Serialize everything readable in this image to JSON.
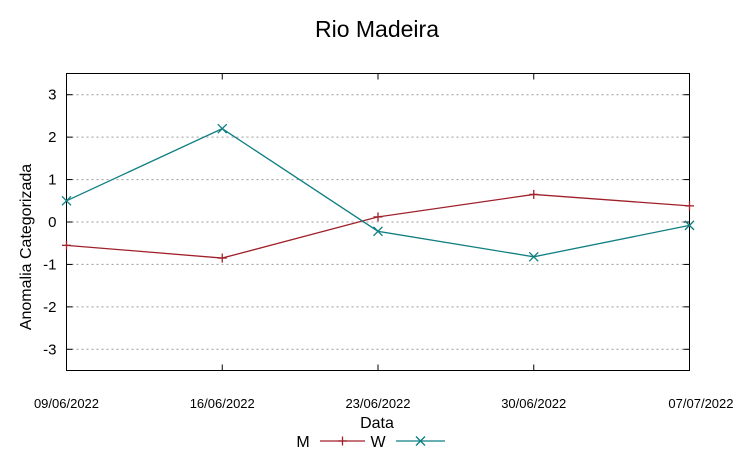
{
  "chart_data": {
    "type": "line",
    "title": "Rio Madeira",
    "xlabel": "Data",
    "ylabel": "Anomalia Categorizada",
    "categories": [
      "09/06/2022",
      "16/06/2022",
      "23/06/2022",
      "30/06/2022",
      "07/07/2022"
    ],
    "ylim": [
      -3.5,
      3.5
    ],
    "yticks": [
      3,
      2,
      1,
      0,
      -1,
      -2,
      -3
    ],
    "ytick_labels": [
      "3",
      "2",
      "1",
      "0",
      "-1",
      "-2",
      "-3"
    ],
    "grid": true,
    "series": [
      {
        "name": "M",
        "color": "#a0202a",
        "marker": "plus",
        "values": [
          -0.55,
          -0.85,
          0.12,
          0.65,
          0.38
        ]
      },
      {
        "name": "W",
        "color": "#0f7f82",
        "marker": "cross",
        "values": [
          0.5,
          2.2,
          -0.22,
          -0.82,
          -0.08
        ]
      }
    ]
  }
}
